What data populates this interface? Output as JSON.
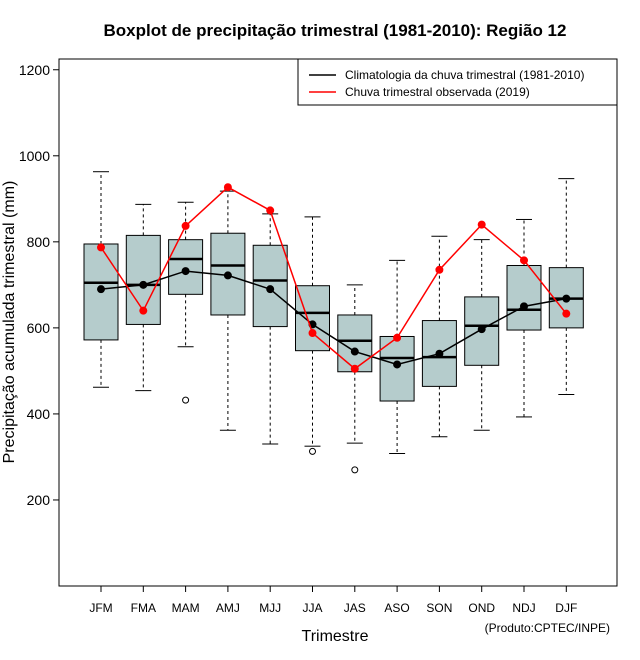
{
  "chart_data": {
    "type": "boxplot",
    "title": "Boxplot de precipitação trimestral (1981-2010): Região 12",
    "xlabel": "Trimestre",
    "ylabel": "Precipitação acumulada trimestral (mm)",
    "credit": "(Produto:CPTEC/INPE)",
    "ylim": [
      0,
      1225
    ],
    "yticks": [
      200,
      400,
      600,
      800,
      1000,
      1200
    ],
    "categories": [
      "JFM",
      "FMA",
      "MAM",
      "AMJ",
      "MJJ",
      "JJA",
      "JAS",
      "ASO",
      "SON",
      "OND",
      "NDJ",
      "DJF"
    ],
    "boxes": [
      {
        "whisker_low": 462,
        "q1": 572,
        "median": 705,
        "q3": 795,
        "whisker_high": 963,
        "outliers": []
      },
      {
        "whisker_low": 454,
        "q1": 608,
        "median": 700,
        "q3": 815,
        "whisker_high": 887,
        "outliers": []
      },
      {
        "whisker_low": 556,
        "q1": 678,
        "median": 760,
        "q3": 805,
        "whisker_high": 892,
        "outliers": [
          432
        ]
      },
      {
        "whisker_low": 362,
        "q1": 630,
        "median": 745,
        "q3": 820,
        "whisker_high": 918,
        "outliers": []
      },
      {
        "whisker_low": 330,
        "q1": 603,
        "median": 710,
        "q3": 792,
        "whisker_high": 865,
        "outliers": []
      },
      {
        "whisker_low": 325,
        "q1": 547,
        "median": 635,
        "q3": 698,
        "whisker_high": 858,
        "outliers": [
          313
        ]
      },
      {
        "whisker_low": 332,
        "q1": 498,
        "median": 570,
        "q3": 630,
        "whisker_high": 700,
        "outliers": [
          270
        ]
      },
      {
        "whisker_low": 308,
        "q1": 430,
        "median": 530,
        "q3": 580,
        "whisker_high": 757,
        "outliers": []
      },
      {
        "whisker_low": 347,
        "q1": 464,
        "median": 532,
        "q3": 617,
        "whisker_high": 813,
        "outliers": []
      },
      {
        "whisker_low": 362,
        "q1": 513,
        "median": 605,
        "q3": 672,
        "whisker_high": 805,
        "outliers": []
      },
      {
        "whisker_low": 393,
        "q1": 595,
        "median": 642,
        "q3": 745,
        "whisker_high": 852,
        "outliers": []
      },
      {
        "whisker_low": 445,
        "q1": 600,
        "median": 668,
        "q3": 740,
        "whisker_high": 947,
        "outliers": []
      }
    ],
    "series": [
      {
        "name": "Climatologia da chuva trimestral (1981-2010)",
        "color": "#000000",
        "values": [
          690,
          700,
          732,
          722,
          690,
          608,
          545,
          515,
          540,
          597,
          650,
          668
        ]
      },
      {
        "name": "Chuva trimestral observada (2019)",
        "color": "#ff0000",
        "values": [
          787,
          640,
          837,
          927,
          873,
          588,
          505,
          577,
          735,
          840,
          757,
          633
        ]
      }
    ],
    "legend": "top-right",
    "box_color": "#b5cccc"
  }
}
